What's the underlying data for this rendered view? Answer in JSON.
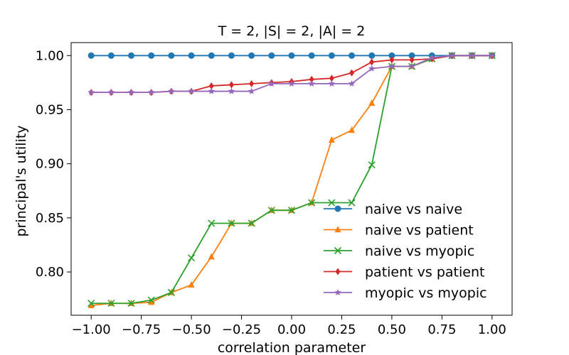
{
  "chart_data": {
    "type": "line",
    "title": "T = 2, |S| = 2, |A| = 2",
    "xlabel": "correlation parameter",
    "ylabel": "principal's utility",
    "xlim": [
      -1.1,
      1.1
    ],
    "ylim": [
      0.76,
      1.012
    ],
    "grid": false,
    "legend_position": "lower-right",
    "x_ticks": [
      -1.0,
      -0.75,
      -0.5,
      -0.25,
      0.0,
      0.25,
      0.5,
      0.75,
      1.0
    ],
    "x_tick_labels": [
      "−1.00",
      "−0.75",
      "−0.50",
      "−0.25",
      "0.00",
      "0.25",
      "0.50",
      "0.75",
      "1.00"
    ],
    "y_ticks": [
      0.8,
      0.85,
      0.9,
      0.95,
      1.0
    ],
    "y_tick_labels": [
      "0.80",
      "0.85",
      "0.90",
      "0.95",
      "1.00"
    ],
    "x": [
      -1.0,
      -0.9,
      -0.8,
      -0.7,
      -0.6,
      -0.5,
      -0.4,
      -0.3,
      -0.2,
      -0.1,
      0.0,
      0.1,
      0.2,
      0.3,
      0.4,
      0.5,
      0.6,
      0.7,
      0.8,
      0.9,
      1.0
    ],
    "series": [
      {
        "name": "naive vs naive",
        "color": "#1f77b4",
        "marker": "circle",
        "values": [
          1.0,
          1.0,
          1.0,
          1.0,
          1.0,
          1.0,
          1.0,
          1.0,
          1.0,
          1.0,
          1.0,
          1.0,
          1.0,
          1.0,
          1.0,
          1.0,
          1.0,
          1.0,
          1.0,
          1.0,
          1.0
        ]
      },
      {
        "name": "naive vs patient",
        "color": "#ff7f0e",
        "marker": "triangle",
        "values": [
          0.769,
          0.771,
          0.771,
          0.772,
          0.781,
          0.788,
          0.814,
          0.845,
          0.845,
          0.857,
          0.857,
          0.864,
          0.922,
          0.931,
          0.956,
          0.99,
          0.99,
          0.997,
          1.0,
          1.0,
          1.0
        ]
      },
      {
        "name": "naive vs myopic",
        "color": "#2ca02c",
        "marker": "x",
        "values": [
          0.771,
          0.771,
          0.771,
          0.774,
          0.781,
          0.813,
          0.845,
          0.845,
          0.845,
          0.857,
          0.857,
          0.864,
          0.864,
          0.864,
          0.899,
          0.99,
          0.99,
          0.997,
          1.0,
          1.0,
          1.0
        ]
      },
      {
        "name": "patient vs patient",
        "color": "#d62728",
        "marker": "diamond",
        "values": [
          0.966,
          0.966,
          0.966,
          0.966,
          0.967,
          0.967,
          0.972,
          0.973,
          0.974,
          0.975,
          0.976,
          0.978,
          0.979,
          0.984,
          0.994,
          0.996,
          0.996,
          0.997,
          1.0,
          1.0,
          1.0
        ]
      },
      {
        "name": "myopic vs myopic",
        "color": "#9467bd",
        "marker": "star",
        "values": [
          0.966,
          0.966,
          0.966,
          0.966,
          0.967,
          0.967,
          0.967,
          0.967,
          0.967,
          0.974,
          0.974,
          0.974,
          0.974,
          0.974,
          0.988,
          0.99,
          0.99,
          0.998,
          1.0,
          1.0,
          1.0
        ]
      }
    ]
  }
}
